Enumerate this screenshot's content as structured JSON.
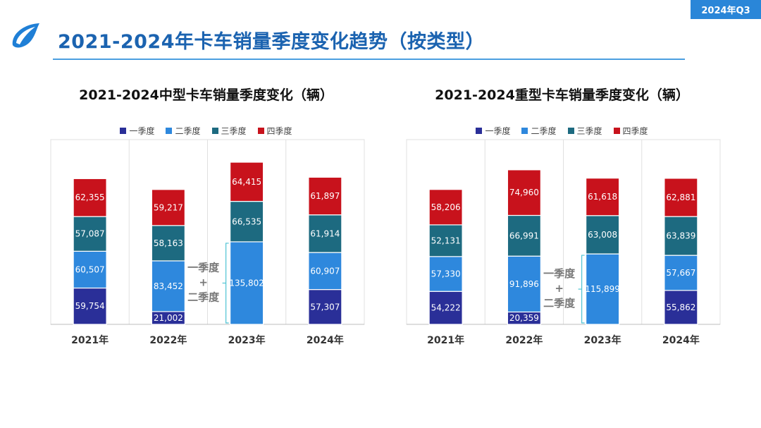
{
  "badge": "2024年Q3",
  "page_title": "2021-2024年卡车销量季度变化趋势（按类型）",
  "colors": {
    "q1": "#2a2f98",
    "q2": "#2e88dd",
    "q3": "#1d6a80",
    "q4": "#c8121c",
    "accent": "#1b63b0"
  },
  "annotation": {
    "line1": "一季度",
    "line2": "+",
    "line3": "二季度"
  },
  "chart_data": [
    {
      "type": "bar",
      "stacked": true,
      "title": "2021-2024中型卡车销量季度变化（辆）",
      "categories": [
        "2021年",
        "2022年",
        "2023年",
        "2024年"
      ],
      "series": [
        {
          "name": "一季度",
          "values": [
            59754,
            21002,
            null,
            57307
          ]
        },
        {
          "name": "二季度",
          "values": [
            60507,
            83452,
            135802,
            60907
          ]
        },
        {
          "name": "三季度",
          "values": [
            57087,
            58163,
            66535,
            61914
          ]
        },
        {
          "name": "四季度",
          "values": [
            62355,
            59217,
            64415,
            61897
          ]
        }
      ],
      "labels": [
        [
          "59,754",
          "21,002",
          "",
          "57,307"
        ],
        [
          "60,507",
          "83,452",
          "135,802",
          "60,907"
        ],
        [
          "57,087",
          "58,163",
          "66,535",
          "61,914"
        ],
        [
          "62,355",
          "59,217",
          "64,415",
          "61,897"
        ]
      ],
      "combined_q1_q2_index": 2,
      "ylim": [
        0,
        290000
      ],
      "legend": "top"
    },
    {
      "type": "bar",
      "stacked": true,
      "title": "2021-2024重型卡车销量季度变化（辆）",
      "categories": [
        "2021年",
        "2022年",
        "2023年",
        "2024年"
      ],
      "series": [
        {
          "name": "一季度",
          "values": [
            54222,
            20359,
            null,
            55862
          ]
        },
        {
          "name": "二季度",
          "values": [
            57330,
            91896,
            115899,
            57667
          ]
        },
        {
          "name": "三季度",
          "values": [
            52131,
            66991,
            63008,
            63839
          ]
        },
        {
          "name": "四季度",
          "values": [
            58206,
            74960,
            61618,
            62881
          ]
        }
      ],
      "labels": [
        [
          "54,222",
          "20,359",
          "",
          "55,862"
        ],
        [
          "57,330",
          "91,896",
          "115,899",
          "57,667"
        ],
        [
          "52,131",
          "66,991",
          "63,008",
          "63,839"
        ],
        [
          "58,206",
          "74,960",
          "61,618",
          "62,881"
        ]
      ],
      "combined_q1_q2_index": 2,
      "ylim": [
        0,
        290000
      ],
      "legend": "top"
    }
  ]
}
